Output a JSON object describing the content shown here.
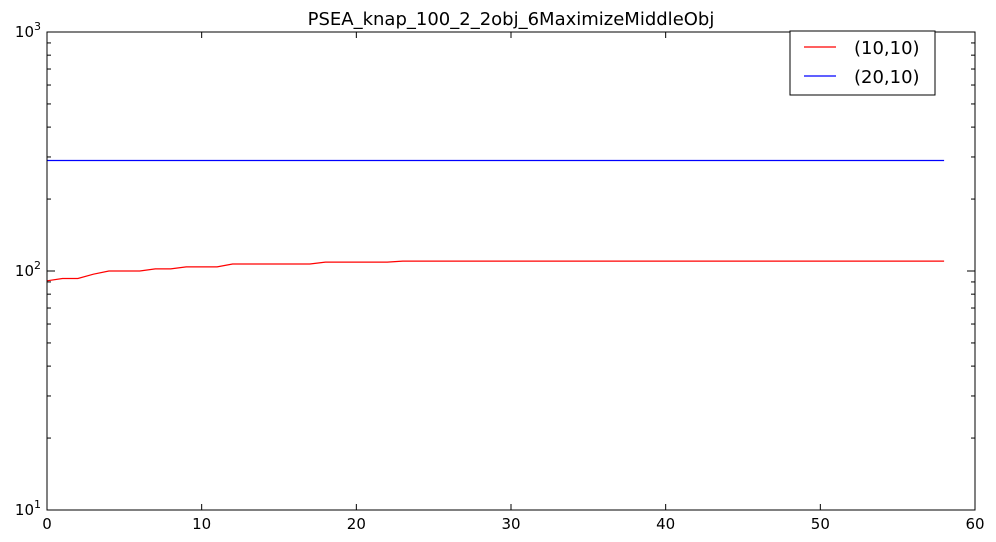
{
  "chart_data": {
    "type": "line",
    "title": "PSEA_knap_100_2_2obj_6MaximizeMiddleObj",
    "xlabel": "",
    "ylabel": "",
    "xlim": [
      0,
      60
    ],
    "ylim": [
      10,
      1000
    ],
    "yscale": "log",
    "x_ticks": [
      "0",
      "10",
      "20",
      "30",
      "40",
      "50",
      "60"
    ],
    "y_ticks": [
      {
        "value": 10,
        "base": "10",
        "exp": "1"
      },
      {
        "value": 100,
        "base": "10",
        "exp": "2"
      },
      {
        "value": 1000,
        "base": "10",
        "exp": "3"
      }
    ],
    "grid": false,
    "legend_position": "top-right",
    "series": [
      {
        "name": "(10,10)",
        "color": "#ff0000",
        "points": [
          [
            0,
            91
          ],
          [
            1,
            93
          ],
          [
            2,
            93
          ],
          [
            3,
            97
          ],
          [
            4,
            100
          ],
          [
            5,
            100
          ],
          [
            6,
            100
          ],
          [
            7,
            102
          ],
          [
            8,
            102
          ],
          [
            9,
            104
          ],
          [
            10,
            104
          ],
          [
            11,
            104
          ],
          [
            12,
            107
          ],
          [
            13,
            107
          ],
          [
            14,
            107
          ],
          [
            15,
            107
          ],
          [
            16,
            107
          ],
          [
            17,
            107
          ],
          [
            18,
            109
          ],
          [
            19,
            109
          ],
          [
            20,
            109
          ],
          [
            21,
            109
          ],
          [
            22,
            109
          ],
          [
            23,
            110
          ],
          [
            58,
            110
          ]
        ]
      },
      {
        "name": "(20,10)",
        "color": "#0000ff",
        "points": [
          [
            0,
            290
          ],
          [
            58,
            290
          ]
        ]
      }
    ]
  }
}
